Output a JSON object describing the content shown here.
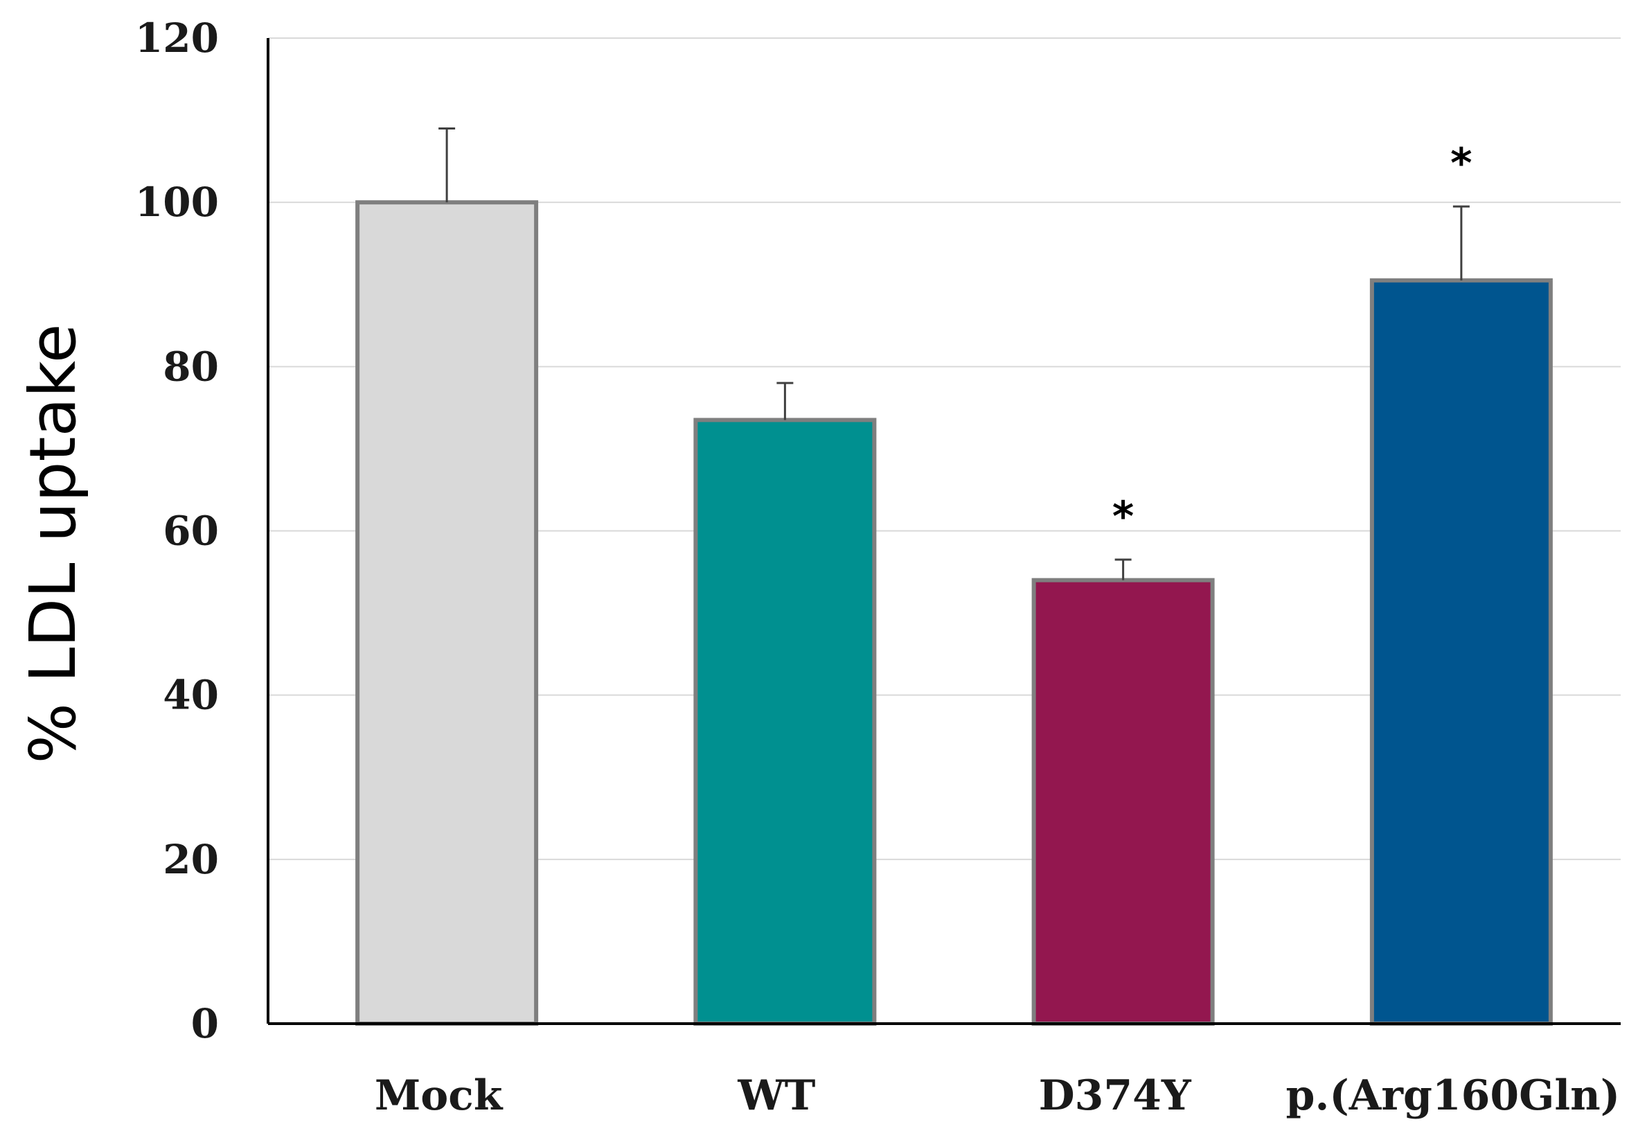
{
  "chart_data": {
    "type": "bar",
    "title": "",
    "xlabel": "",
    "ylabel": "% LDL uptake",
    "ylim": [
      0,
      120
    ],
    "yticks": [
      0,
      20,
      40,
      60,
      80,
      100,
      120
    ],
    "grid": true,
    "categories": [
      "Mock",
      "WT",
      "D374Y",
      "p.(Arg160Gln)"
    ],
    "values": [
      100,
      73.5,
      54,
      90.5
    ],
    "errors": [
      9,
      4.5,
      2.5,
      9
    ],
    "annotations": [
      "",
      "",
      "*",
      "*"
    ],
    "colors": [
      "#d9d9d9",
      "#009090",
      "#93174f",
      "#00558f"
    ],
    "bar_edge_color": "#7f7f7f"
  }
}
